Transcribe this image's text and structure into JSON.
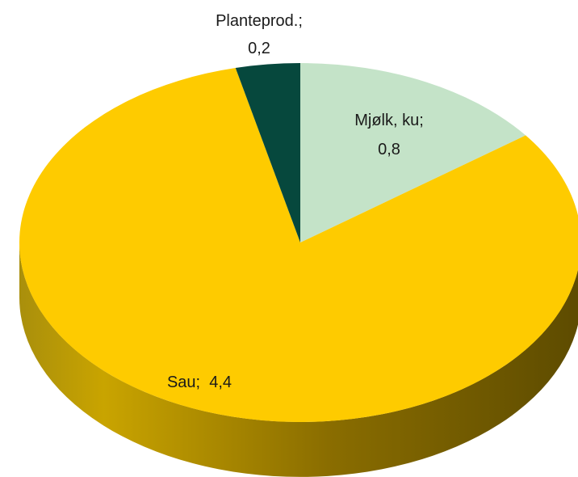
{
  "chart_data": {
    "type": "pie",
    "title": "",
    "slices": [
      {
        "name": "Mjølk, ku",
        "value": 0.8,
        "label_line1": "Mjølk, ku;",
        "label_line2": "0,8",
        "color": "#c4e3c8"
      },
      {
        "name": "Sau",
        "value": 4.4,
        "label_line1": "Sau;  4,4",
        "label_line2": "",
        "color": "#fecb00"
      },
      {
        "name": "Planteprod.",
        "value": 0.2,
        "label_line1": "Planteprod.;",
        "label_line2": "0,2",
        "color": "#06483d"
      }
    ],
    "style": "3d",
    "legend": "none"
  }
}
